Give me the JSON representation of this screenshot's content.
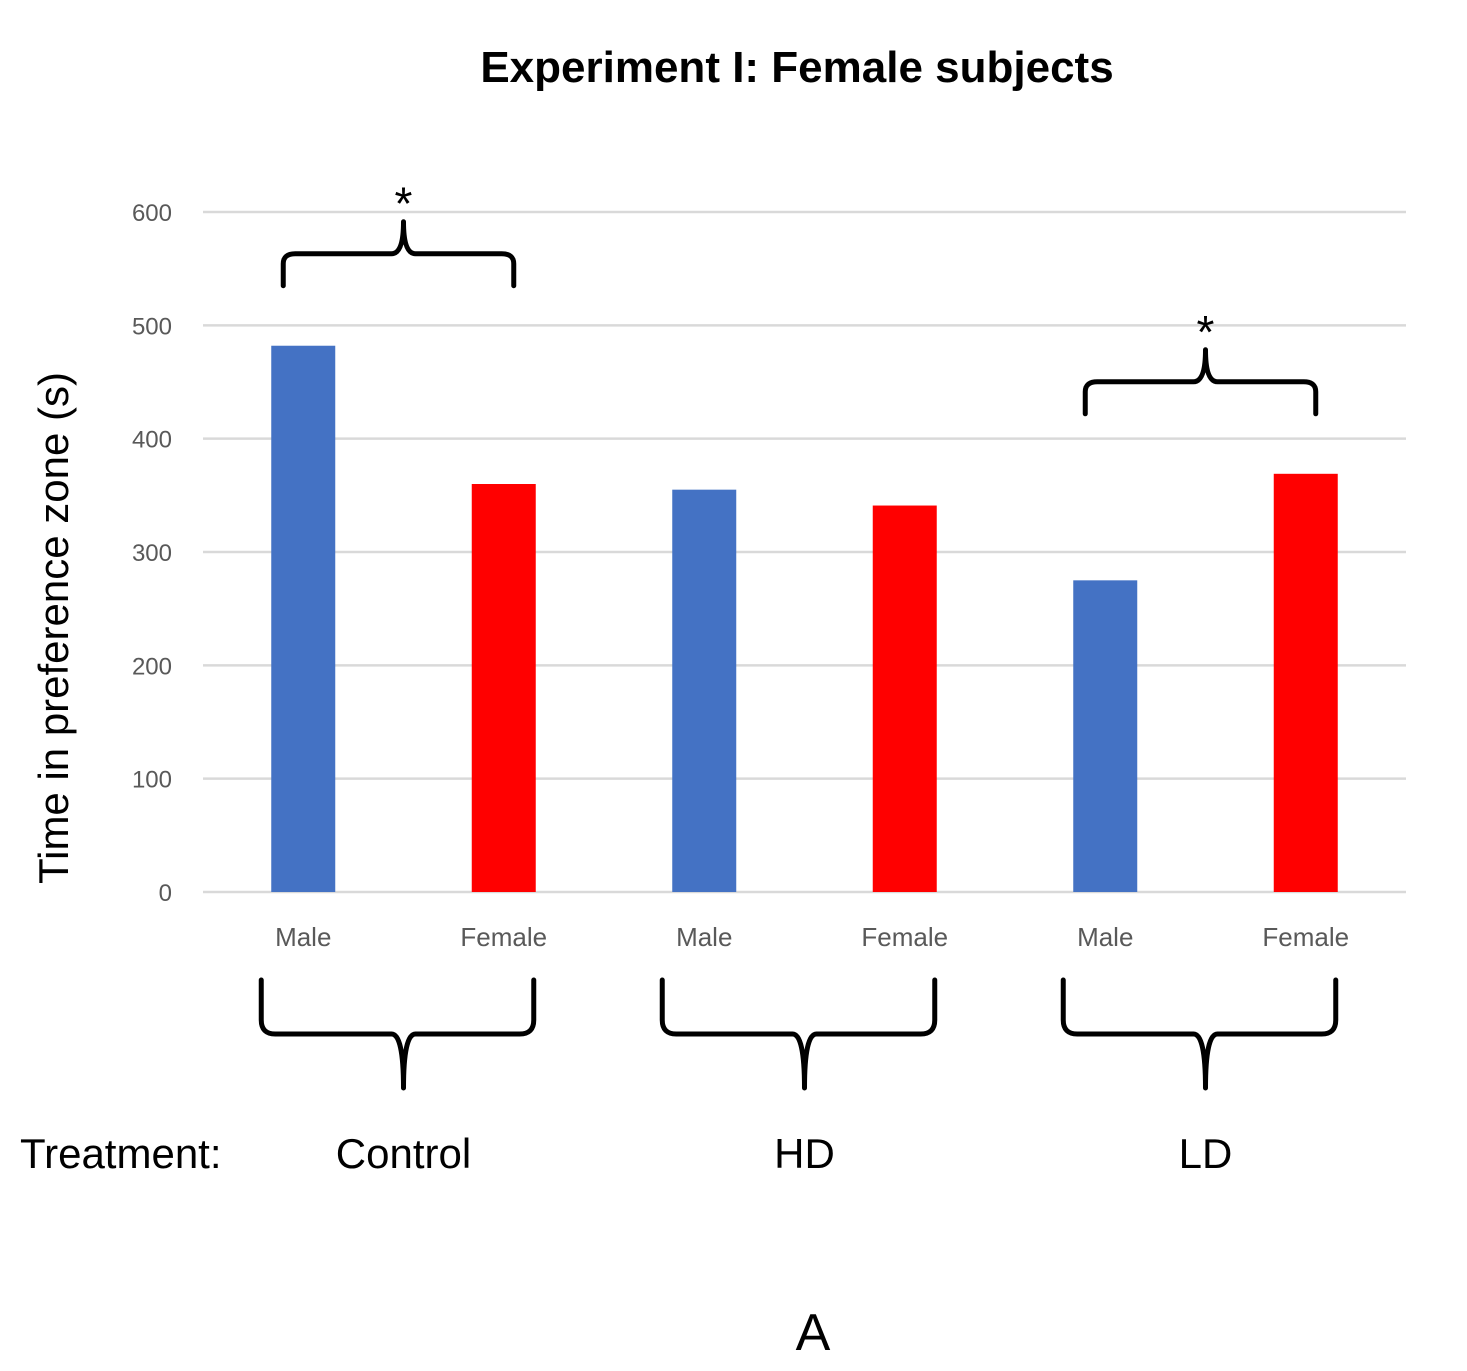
{
  "chart_data": {
    "type": "bar",
    "title": "Experiment I: Female subjects",
    "ylabel": "Time in preference zone (s)",
    "ylim": [
      0,
      600
    ],
    "yticks": [
      0,
      100,
      200,
      300,
      400,
      500,
      600
    ],
    "grid": true,
    "categories": [
      "Male",
      "Female",
      "Male",
      "Female",
      "Male",
      "Female"
    ],
    "values": [
      482,
      360,
      355,
      341,
      275,
      369
    ],
    "colors": [
      "#4472C4",
      "#FF0000",
      "#4472C4",
      "#FF0000",
      "#4472C4",
      "#FF0000"
    ],
    "treatment_label": "Treatment:",
    "groups": [
      {
        "label": "Control",
        "members": [
          0,
          1
        ]
      },
      {
        "label": "HD",
        "members": [
          2,
          3
        ]
      },
      {
        "label": "LD",
        "members": [
          4,
          5
        ]
      }
    ],
    "significance": [
      {
        "members": [
          0,
          1
        ],
        "mark": "*"
      },
      {
        "members": [
          4,
          5
        ],
        "mark": "*"
      }
    ]
  },
  "panel_label": "A"
}
